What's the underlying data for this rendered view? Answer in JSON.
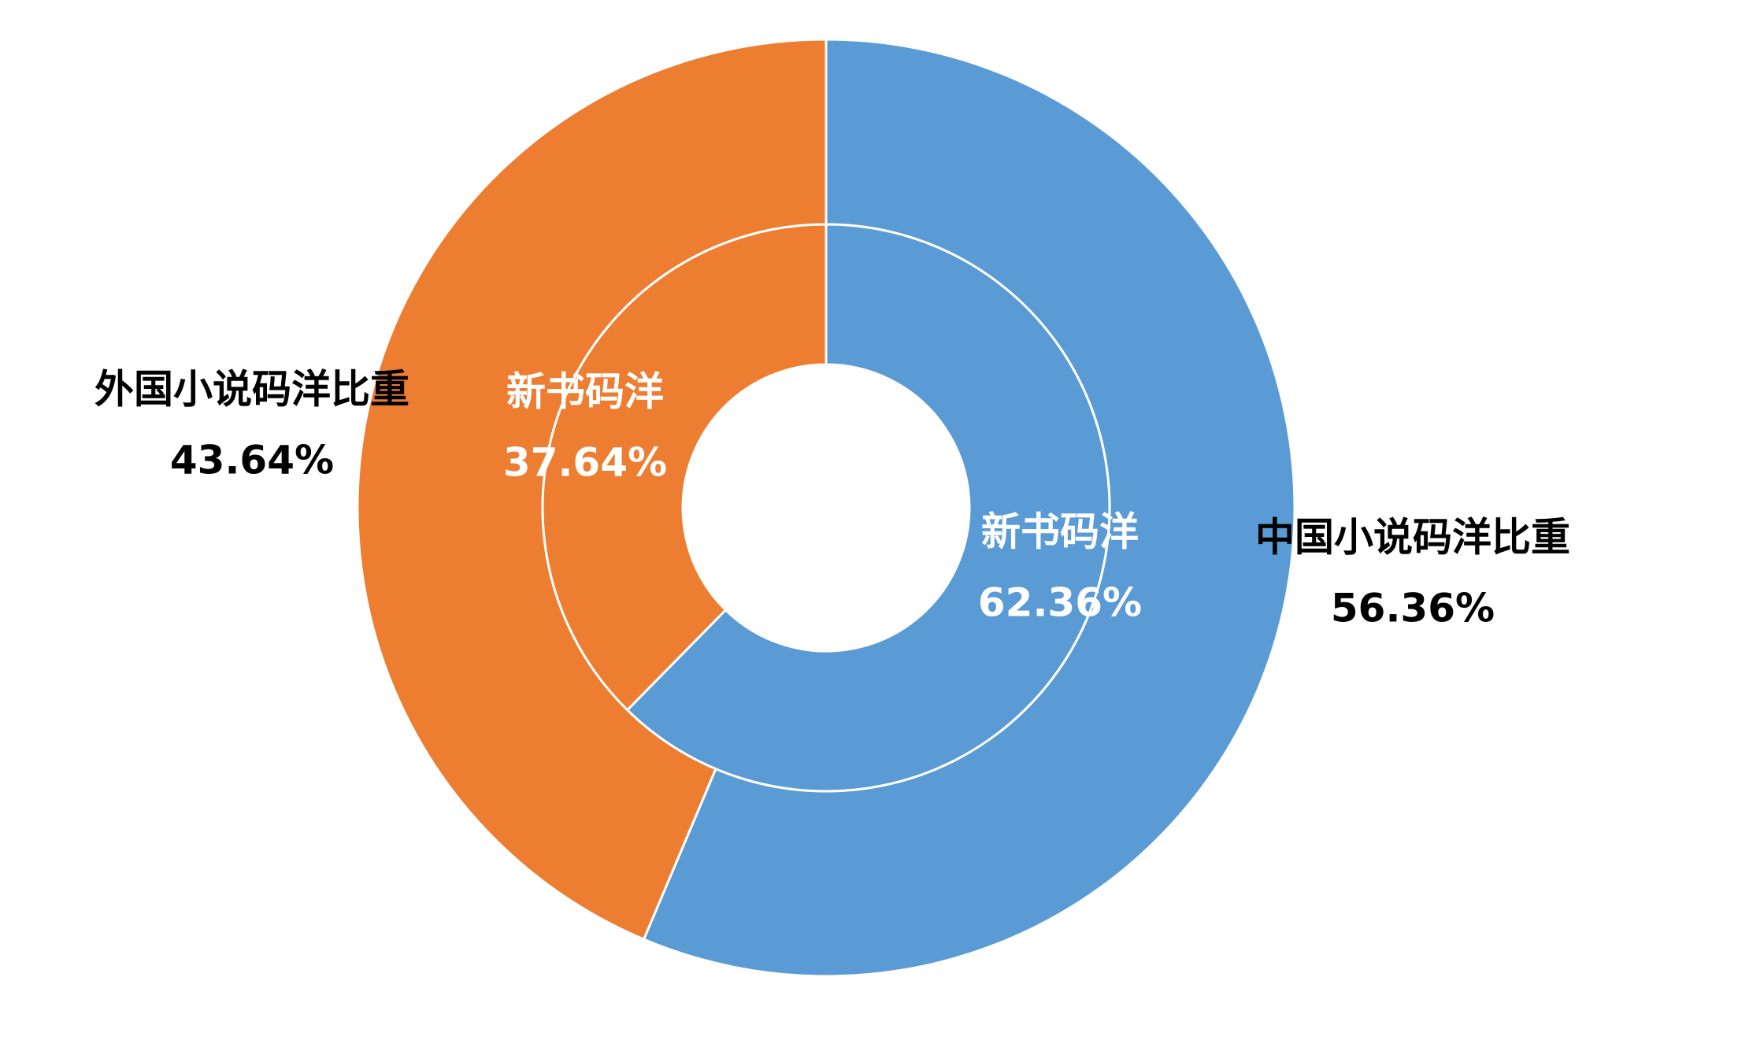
{
  "chart_data": {
    "type": "doughnut",
    "rings": [
      {
        "categories": [
          "中国小说码洋比重",
          "外国小说码洋比重"
        ],
        "values": [
          56.36,
          43.64
        ],
        "value_labels": [
          "56.36%",
          "43.64%"
        ],
        "colors": [
          "#5b9bd5",
          "#ed7d31"
        ]
      },
      {
        "categories": [
          "新书码洋",
          "新书码洋"
        ],
        "values": [
          62.36,
          37.64
        ],
        "value_labels": [
          "62.36%",
          "37.64%"
        ],
        "colors": [
          "#5b9bd5",
          "#ed7d31"
        ]
      }
    ]
  }
}
